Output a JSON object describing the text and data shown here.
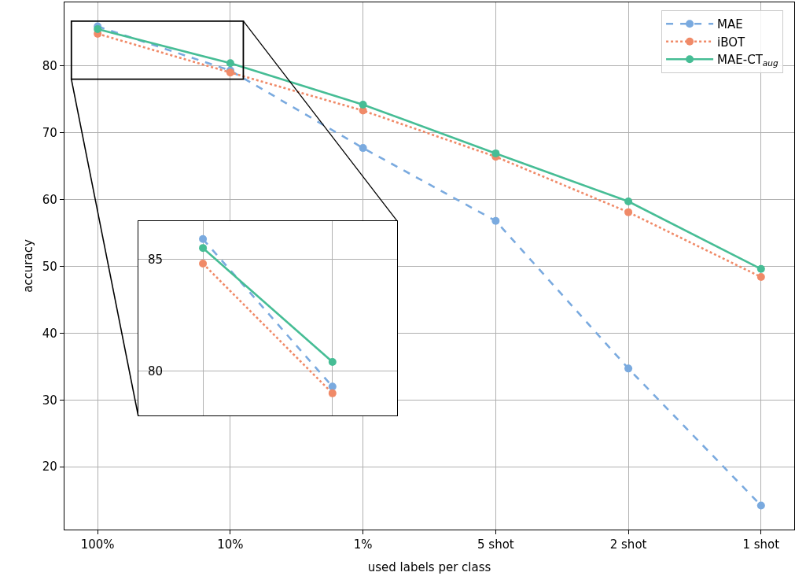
{
  "chart_data": [
    {
      "type": "line",
      "xlabel": "used labels per class",
      "ylabel": "accuracy",
      "categories": [
        "100%",
        "10%",
        "1%",
        "5 shot",
        "2 shot",
        "1 shot"
      ],
      "ylim": [
        10.6,
        89.5
      ],
      "yticks": [
        20,
        30,
        40,
        50,
        60,
        70,
        80
      ],
      "grid": true,
      "legend": "top right",
      "marker": "circle",
      "series": [
        {
          "name": "MAE",
          "color": "#7aaadf",
          "line_style": "dashed",
          "values": [
            85.9,
            79.3,
            67.7,
            56.8,
            34.7,
            14.2
          ]
        },
        {
          "name": "iBOT",
          "color": "#f08a68",
          "line_style": "dotted",
          "values": [
            84.8,
            79.0,
            73.3,
            66.4,
            58.1,
            48.4
          ]
        },
        {
          "name": "MAE-CT$_{aug}$",
          "color": "#46bd95",
          "line_style": "solid",
          "values": [
            85.5,
            80.4,
            74.2,
            66.9,
            59.7,
            49.6
          ]
        }
      ]
    },
    {
      "type": "line",
      "categories": [
        null,
        null
      ],
      "ylim": [
        78.0,
        86.7
      ],
      "yticks": [
        80,
        85
      ],
      "grid": true,
      "marker": "circle",
      "tick_labels": "y",
      "series": [
        {
          "color": "#7aaadf",
          "line_style": "dashed",
          "values": [
            85.9,
            79.3
          ]
        },
        {
          "color": "#f08a68",
          "line_style": "dotted",
          "values": [
            84.8,
            79.0
          ]
        },
        {
          "color": "#46bd95",
          "line_style": "solid",
          "values": [
            85.5,
            80.4
          ]
        }
      ]
    }
  ]
}
